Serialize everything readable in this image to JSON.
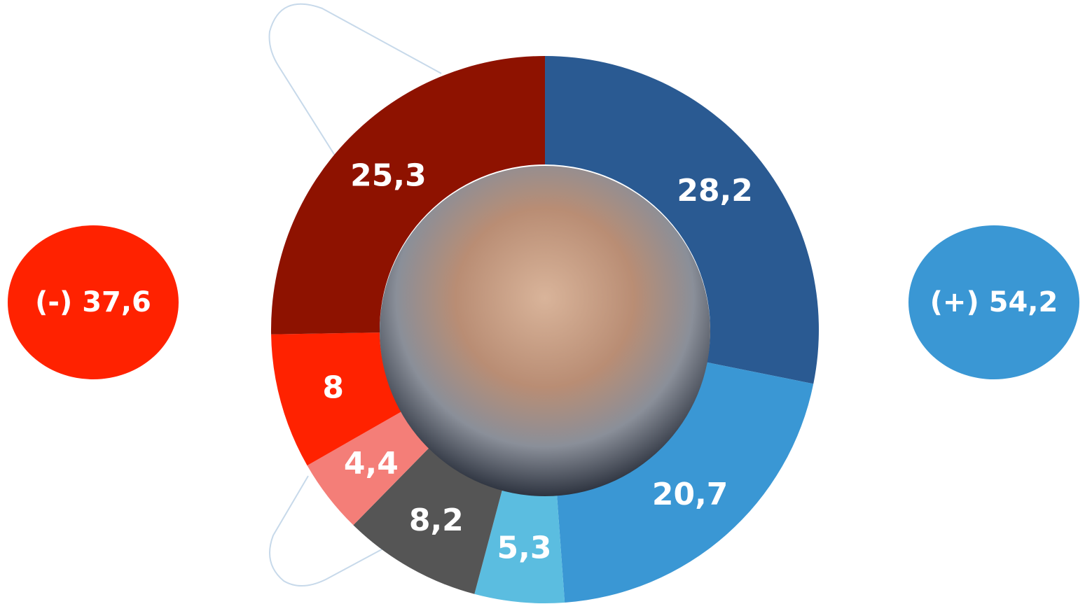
{
  "chart_data": {
    "type": "donut",
    "values": [
      28.2,
      20.7,
      5.3,
      8.2,
      4.4,
      8,
      25.3
    ],
    "value_labels": [
      "28,2",
      "20,7",
      "5,3",
      "8,2",
      "4,4",
      "8",
      "25,3"
    ],
    "colors": [
      "#2a5a92",
      "#3a97d4",
      "#5bbde0",
      "#555555",
      "#f47e78",
      "#ff2200",
      "#8e1200"
    ],
    "annotations": [
      {
        "text": "(-) 37,6",
        "color": "#ff2200"
      },
      {
        "text": "(+) 54,2",
        "color": "#3a97d4"
      }
    ]
  }
}
